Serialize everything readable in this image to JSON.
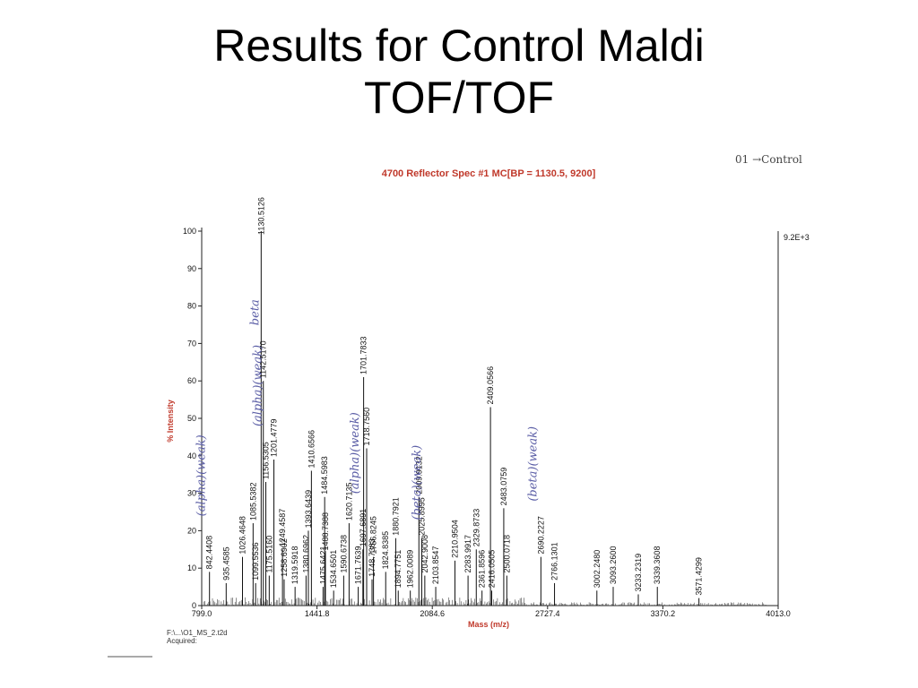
{
  "slide": {
    "title_line1": "Results for Control Maldi",
    "title_line2": "TOF/TOF"
  },
  "scan": {
    "corner_note": "01 →Control",
    "file_path": "F:\\...\\O1_MS_2.t2d",
    "acquired": "Acquired:",
    "max_intensity": "9.2E+3"
  },
  "chart_data": {
    "type": "line",
    "title": "4700 Reflector Spec #1 MC[BP = 1130.5, 9200]",
    "xlabel": "Mass (m/z)",
    "ylabel": "% Intensity",
    "xlim": [
      799.0,
      4013.0
    ],
    "ylim": [
      0,
      100
    ],
    "x_ticks": [
      "799.0",
      "1441.8",
      "2084.6",
      "2727.4",
      "3370.2",
      "4013.0"
    ],
    "y_ticks": [
      0,
      10,
      20,
      30,
      40,
      50,
      60,
      70,
      80,
      90,
      100
    ],
    "grid": false,
    "peaks": [
      {
        "mz": 842.4408,
        "intensity": 9,
        "label": "842.4408"
      },
      {
        "mz": 935.4585,
        "intensity": 6,
        "label": "935.4585"
      },
      {
        "mz": 1026.4648,
        "intensity": 13,
        "label": "1026.4648"
      },
      {
        "mz": 1085.5382,
        "intensity": 22,
        "label": "1085.5382"
      },
      {
        "mz": 1099.5536,
        "intensity": 6,
        "label": "1099.5536"
      },
      {
        "mz": 1130.5126,
        "intensity": 100,
        "label": "1130.5126"
      },
      {
        "mz": 1142.517,
        "intensity": 60,
        "label": "1142.5170"
      },
      {
        "mz": 1156.5305,
        "intensity": 33,
        "label": "1156.5305"
      },
      {
        "mz": 1175.516,
        "intensity": 8,
        "label": "1175.5160"
      },
      {
        "mz": 1201.4779,
        "intensity": 39,
        "label": "1201.4779"
      },
      {
        "mz": 1249.4587,
        "intensity": 15,
        "label": "1249.4587"
      },
      {
        "mz": 1258.6902,
        "intensity": 7,
        "label": "1258.6902"
      },
      {
        "mz": 1319.5918,
        "intensity": 5,
        "label": "1319.5918"
      },
      {
        "mz": 1380.6962,
        "intensity": 8,
        "label": "1380.6962"
      },
      {
        "mz": 1393.6439,
        "intensity": 20,
        "label": "1393.6439"
      },
      {
        "mz": 1410.6566,
        "intensity": 36,
        "label": "1410.6566"
      },
      {
        "mz": 1475.6421,
        "intensity": 5,
        "label": "1475.6421"
      },
      {
        "mz": 1484.5983,
        "intensity": 29,
        "label": "1484.5983"
      },
      {
        "mz": 1488.7388,
        "intensity": 14,
        "label": "1488.7388"
      },
      {
        "mz": 1534.6501,
        "intensity": 4,
        "label": "1534.6501"
      },
      {
        "mz": 1590.6738,
        "intensity": 8,
        "label": "1590.6738"
      },
      {
        "mz": 1620.7135,
        "intensity": 22,
        "label": "1620.7135"
      },
      {
        "mz": 1671.7639,
        "intensity": 5,
        "label": "1671.7639"
      },
      {
        "mz": 1697.6891,
        "intensity": 15,
        "label": "1697.6891"
      },
      {
        "mz": 1701.7833,
        "intensity": 61,
        "label": "1701.7833"
      },
      {
        "mz": 1718.756,
        "intensity": 42,
        "label": "1718.7560"
      },
      {
        "mz": 1748.7383,
        "intensity": 7,
        "label": "1748.7383"
      },
      {
        "mz": 1756.8245,
        "intensity": 13,
        "label": "1756.8245"
      },
      {
        "mz": 1824.8385,
        "intensity": 9,
        "label": "1824.8385"
      },
      {
        "mz": 1880.7921,
        "intensity": 18,
        "label": "1880.7921"
      },
      {
        "mz": 1894.7751,
        "intensity": 4,
        "label": "1894.7751"
      },
      {
        "mz": 1962.0089,
        "intensity": 4,
        "label": "1962.0089"
      },
      {
        "mz": 2009.9132,
        "intensity": 29,
        "label": "2009.9132"
      },
      {
        "mz": 2025.8995,
        "intensity": 18,
        "label": "2025.8995"
      },
      {
        "mz": 2042.9008,
        "intensity": 8,
        "label": "2042.9008"
      },
      {
        "mz": 2103.8547,
        "intensity": 5,
        "label": "2103.8547"
      },
      {
        "mz": 2210.9504,
        "intensity": 12,
        "label": "2210.9504"
      },
      {
        "mz": 2283.9917,
        "intensity": 8,
        "label": "2283.9917"
      },
      {
        "mz": 2329.8733,
        "intensity": 15,
        "label": "2329.8733"
      },
      {
        "mz": 2361.8596,
        "intensity": 4,
        "label": "2361.8596"
      },
      {
        "mz": 2409.0566,
        "intensity": 53,
        "label": "2409.0566"
      },
      {
        "mz": 2416.0505,
        "intensity": 4,
        "label": "2416.0505"
      },
      {
        "mz": 2483.0759,
        "intensity": 26,
        "label": "2483.0759"
      },
      {
        "mz": 2500.0718,
        "intensity": 8,
        "label": "2500.0718"
      },
      {
        "mz": 2690.2227,
        "intensity": 13,
        "label": "2690.2227"
      },
      {
        "mz": 2766.1301,
        "intensity": 6,
        "label": "2766.1301"
      },
      {
        "mz": 3002.248,
        "intensity": 4,
        "label": "3002.2480"
      },
      {
        "mz": 3093.26,
        "intensity": 5,
        "label": "3093.2600"
      },
      {
        "mz": 3233.2319,
        "intensity": 3,
        "label": "3233.2319"
      },
      {
        "mz": 3339.3608,
        "intensity": 5,
        "label": "3339.3608"
      },
      {
        "mz": 3571.4299,
        "intensity": 2,
        "label": "3571.4299"
      }
    ],
    "annotations": [
      {
        "text": "(alpha)(weak)",
        "mz": 842.4408
      },
      {
        "text": "beta",
        "mz": 1142.517
      },
      {
        "text": "(alpha)(weak)",
        "mz": 1156.5305
      },
      {
        "text": "(alpha)(weak)",
        "mz": 1697.6891
      },
      {
        "text": "(beta)(weak)",
        "mz": 2042.9008
      },
      {
        "text": "(beta)(weak)",
        "mz": 2690.2227
      }
    ]
  }
}
